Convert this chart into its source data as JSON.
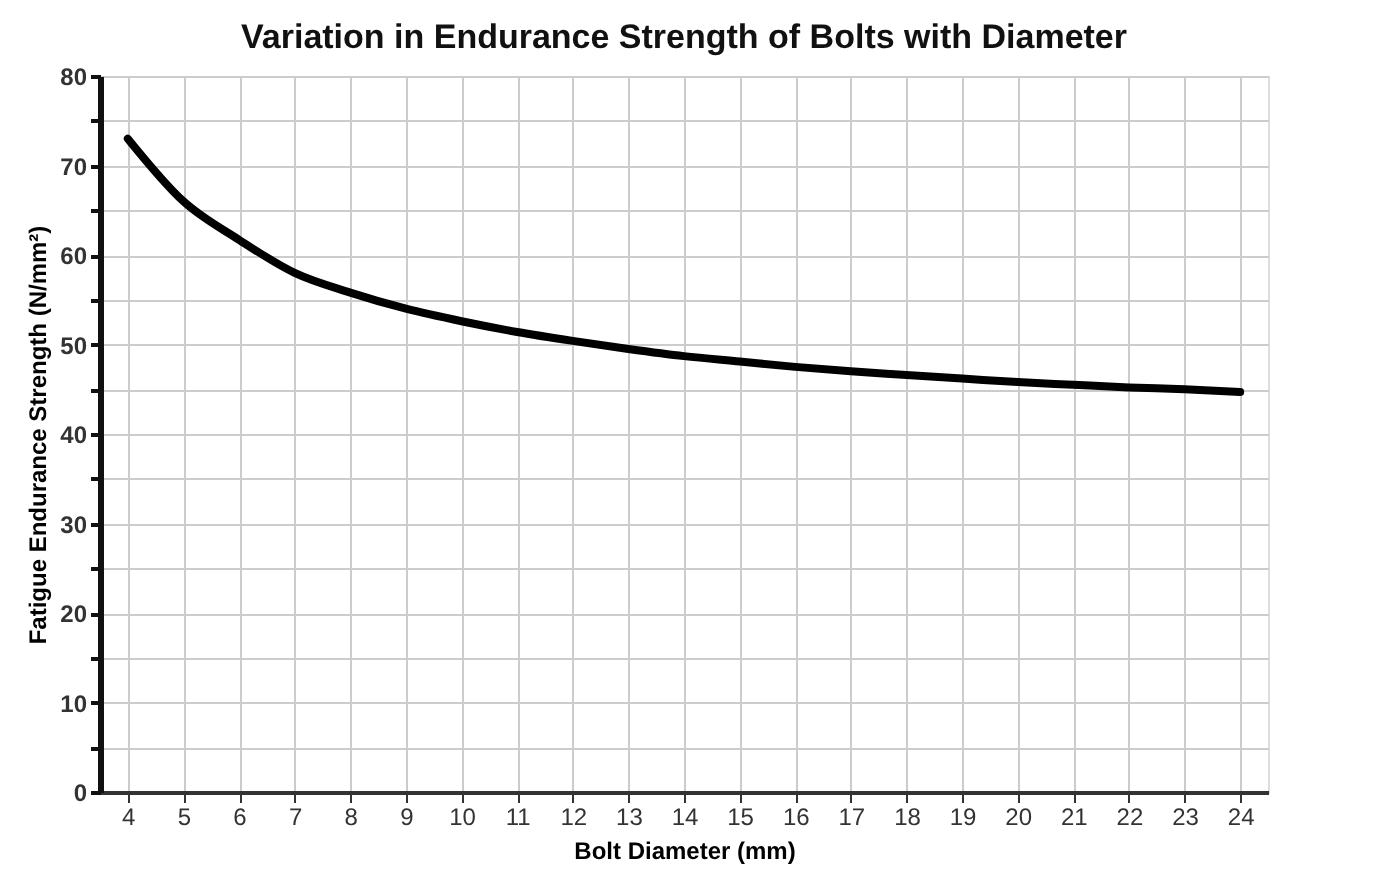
{
  "chart_data": {
    "type": "line",
    "title": "Variation in Endurance Strength of Bolts with Diameter",
    "xlabel": "Bolt Diameter (mm)",
    "ylabel": "Fatigue Endurance Strength (N/mm²)",
    "x": [
      4,
      5,
      6,
      7,
      8,
      9,
      10,
      11,
      12,
      13,
      14,
      15,
      16,
      17,
      18,
      19,
      20,
      21,
      22,
      23,
      24
    ],
    "series": [
      {
        "color": "#000000",
        "values": [
          73,
          66,
          61.7,
          58,
          55.8,
          54,
          52.6,
          51.4,
          50.4,
          49.5,
          48.7,
          48.1,
          47.5,
          47,
          46.6,
          46.2,
          45.8,
          45.5,
          45.2,
          45,
          44.7
        ]
      }
    ],
    "xlim": [
      3.5,
      24.5
    ],
    "xticks": [
      4,
      5,
      6,
      7,
      8,
      9,
      10,
      11,
      12,
      13,
      14,
      15,
      16,
      17,
      18,
      19,
      20,
      21,
      22,
      23,
      24
    ],
    "ylim": [
      0,
      80
    ],
    "yticks": [
      0,
      {
        "value": 5,
        "label": null
      },
      10,
      {
        "value": 15,
        "label": null
      },
      20,
      {
        "value": 25,
        "label": null
      },
      30,
      {
        "value": 35,
        "label": null
      },
      40,
      {
        "value": 45,
        "label": null
      },
      50,
      {
        "value": 55,
        "label": null
      },
      60,
      {
        "value": 65,
        "label": null
      },
      70,
      {
        "value": 75,
        "label": null
      },
      80
    ],
    "grid": true,
    "marker": "none",
    "line_style": "solid"
  }
}
